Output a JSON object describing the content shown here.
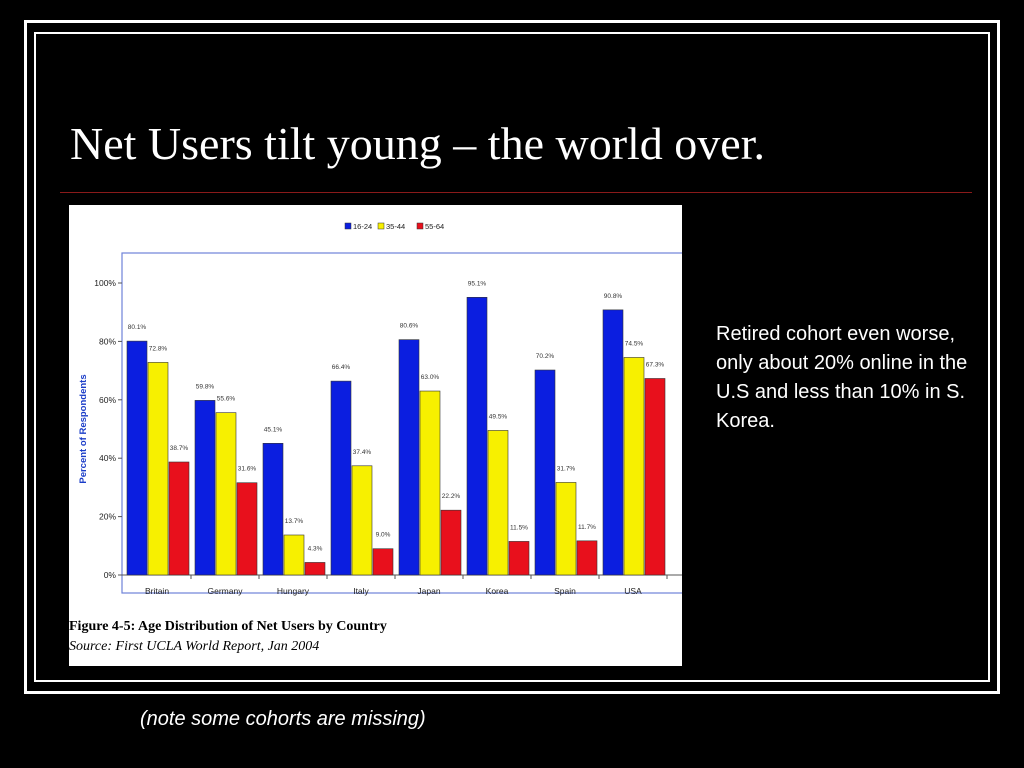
{
  "slide": {
    "title": "Net Users tilt young – the world over.",
    "side_text": "Retired cohort even worse, only about 20% online in the U.S and less than 10% in S. Korea.",
    "footnote": "(note some cohorts are missing)"
  },
  "figure": {
    "caption": "Figure 4-5:  Age Distribution of Net Users by Country",
    "source": "Source:  First UCLA World Report, Jan 2004"
  },
  "chart_data": {
    "type": "bar",
    "ylabel": "Percent of Respondents",
    "xlabel": "",
    "ylim": [
      0,
      100
    ],
    "yticks": [
      0,
      20,
      40,
      60,
      80,
      100
    ],
    "ytick_labels": [
      "0%",
      "20%",
      "40%",
      "60%",
      "80%",
      "100%"
    ],
    "categories": [
      "Britain",
      "Germany",
      "Hungary",
      "Italy",
      "Japan",
      "Korea",
      "Spain",
      "USA"
    ],
    "legend_position": "top",
    "grid": false,
    "series": [
      {
        "name": "16-24",
        "color": "#0b1ee0",
        "values": [
          80.1,
          59.8,
          45.1,
          66.4,
          80.6,
          95.1,
          70.2,
          90.8
        ],
        "labels": [
          "80.1%",
          "59.8%",
          "45.1%",
          "66.4%",
          "80.6%",
          "95.1%",
          "70.2%",
          "90.8%"
        ]
      },
      {
        "name": "35-44",
        "color": "#f7f000",
        "values": [
          72.8,
          55.6,
          13.7,
          37.4,
          63.0,
          49.5,
          31.7,
          74.5
        ],
        "labels": [
          "72.8%",
          "55.6%",
          "13.7%",
          "37.4%",
          "63.0%",
          "49.5%",
          "31.7%",
          "74.5%"
        ]
      },
      {
        "name": "55-64",
        "color": "#e8101c",
        "values": [
          38.7,
          31.6,
          4.3,
          9.0,
          22.2,
          11.5,
          11.7,
          67.3
        ],
        "labels": [
          "38.7%",
          "31.6%",
          "4.3%",
          "9.0%",
          "22.2%",
          "11.5%",
          "11.7%",
          "67.3%"
        ]
      }
    ]
  }
}
